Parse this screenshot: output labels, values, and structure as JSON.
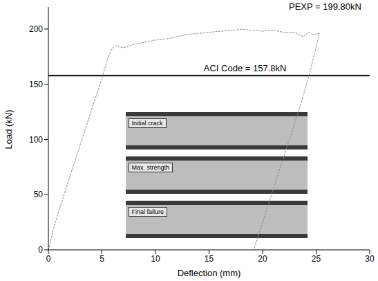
{
  "chart_data": {
    "type": "line",
    "x_label": "Deflection (mm)",
    "y_label": "Load (kN)",
    "x": [
      0,
      0.5,
      1,
      2,
      3,
      4,
      5,
      5.5,
      5.9,
      6.3,
      7,
      8,
      9,
      10,
      11,
      12,
      13,
      14,
      15,
      16,
      17,
      18,
      19,
      20,
      21,
      22,
      23,
      23.8,
      24.3,
      24.7,
      25.3,
      24.4,
      23.5,
      22.5,
      21.5,
      20.5,
      19.5,
      19.2
    ],
    "values": [
      0,
      20,
      36,
      66,
      96,
      126,
      155,
      172,
      182,
      185,
      183,
      186,
      188,
      190,
      191,
      193,
      195,
      196,
      197,
      198,
      198.5,
      199.8,
      199,
      198,
      199,
      197,
      197,
      193,
      197,
      195,
      196,
      160,
      130,
      100,
      70,
      40,
      10,
      0
    ],
    "color": "#888888",
    "line_style": "dashed",
    "xlim": [
      0,
      30
    ],
    "xticks": [
      0,
      5,
      10,
      15,
      20,
      25,
      30
    ],
    "ylim": [
      0,
      220
    ],
    "yticks": [
      0,
      50,
      100,
      150,
      200
    ],
    "hlines": [
      {
        "value": 157.8,
        "label": "ACI Code = 157.8kN",
        "color": "#000000"
      }
    ],
    "annotations": [
      "PEXP = 199.80kN"
    ],
    "insets": [
      "Initial crack",
      "Max. strength",
      "Final failure"
    ],
    "grid": false
  }
}
